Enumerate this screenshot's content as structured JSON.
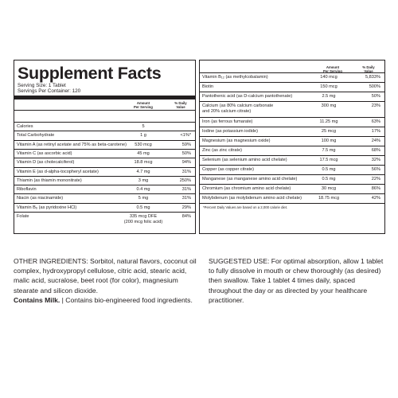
{
  "supplement_facts": {
    "title": "Supplement Facts",
    "serving_size": "Serving Size: 1 Tablet",
    "servings_per_container": "Servings Per Container: 120",
    "col_amount": [
      "Amount",
      "Per Serving"
    ],
    "col_dv": [
      "% Daily",
      "Value"
    ],
    "left_rows": [
      {
        "name": "Calories",
        "amount": "5",
        "dv": ""
      },
      {
        "name": "Total Carbohydrate",
        "amount": "1 g",
        "dv": "<1%*"
      },
      {
        "name": "Vitamin A (as retinyl acetate and 75% as beta-carotene)",
        "amount": "530 mcg",
        "dv": "59%"
      },
      {
        "name": "Vitamin C (as ascorbic acid)",
        "amount": "45 mg",
        "dv": "50%"
      },
      {
        "name": "Vitamin D (as cholecalciferol)",
        "amount": "18.8 mcg",
        "dv": "94%"
      },
      {
        "name": "Vitamin E (as d-alpha-tocopheryl acetate)",
        "amount": "4.7 mg",
        "dv": "31%"
      },
      {
        "name": "Thiamin (as thiamin mononitrate)",
        "amount": "3 mg",
        "dv": "250%"
      },
      {
        "name": "Riboflavin",
        "amount": "0.4 mg",
        "dv": "31%"
      },
      {
        "name": "Niacin (as niacinamide)",
        "amount": "5 mg",
        "dv": "31%"
      },
      {
        "name": "Vitamin B₆ (as pyridoxine HCl)",
        "amount": "0.5 mg",
        "dv": "29%"
      },
      {
        "name": "Folate",
        "amount": "335 mcg DFE",
        "amount2": "(200 mcg folic acid)",
        "dv": "84%"
      }
    ],
    "right_rows": [
      {
        "name": "Vitamin B₁₂ (as methylcobalamin)",
        "amount": "140 mcg",
        "dv": "5,833%"
      },
      {
        "name": "Biotin",
        "amount": "150 mcg",
        "dv": "500%"
      },
      {
        "name": "Pantothenic acid (as D-calcium pantothenate)",
        "amount": "2.5 mg",
        "dv": "50%"
      },
      {
        "name": "Calcium (as 80% calcium carbonate",
        "name2": "and 20% calcium citrate)",
        "amount": "300 mg",
        "dv": "23%"
      },
      {
        "name": "Iron (as ferrous fumarate)",
        "amount": "11.25 mg",
        "dv": "63%"
      },
      {
        "name": "Iodine (as potassium iodide)",
        "amount": "25 mcg",
        "dv": "17%"
      },
      {
        "name": "Magnesium (as magnesium oxide)",
        "amount": "100 mg",
        "dv": "24%"
      },
      {
        "name": "Zinc (as zinc citrate)",
        "amount": "7.5 mg",
        "dv": "68%"
      },
      {
        "name": "Selenium (as selenium amino acid chelate)",
        "amount": "17.5 mcg",
        "dv": "32%"
      },
      {
        "name": "Copper (as copper citrate)",
        "amount": "0.5 mg",
        "dv": "56%"
      },
      {
        "name": "Manganese (as manganese amino acid chelate)",
        "amount": "0.5 mg",
        "dv": "22%"
      },
      {
        "name": "Chromium (as chromium amino acid chelate)",
        "amount": "30 mcg",
        "dv": "86%"
      },
      {
        "name": "Molybdenum (as molybdenum amino acid chelate)",
        "amount": "18.75 mcg",
        "dv": "42%"
      }
    ],
    "footnote": "*Percent Daily Values are based on a 2,000 calorie diet."
  },
  "other_ingredients": {
    "text": "OTHER INGREDIENTS: Sorbitol, natural flavors, coconut oil complex, hydroxypropyl cellulose, citric acid, stearic acid, malic acid, sucralose, beet root (for color), magnesium stearate and silicon dioxide.",
    "contains": "Contains Milk.",
    "bioengineered": " | Contains bio-engineered food ingredients."
  },
  "suggested_use": {
    "text": "SUGGESTED USE: For optimal absorption, allow 1 tablet to fully dissolve in mouth or chew thoroughly (as desired) then swallow. Take 1 tablet 4 times daily, spaced throughout the day or as directed by your healthcare practitioner."
  }
}
